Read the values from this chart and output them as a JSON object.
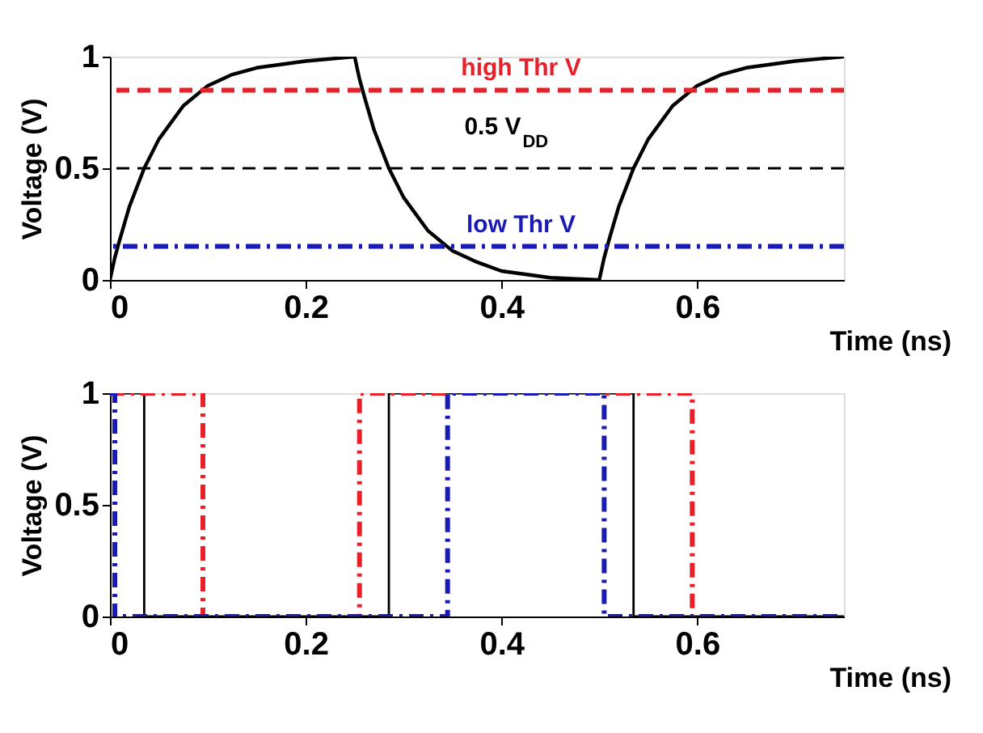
{
  "chart_data": [
    {
      "type": "line",
      "xlabel": "Time (ns)",
      "ylabel": "Voltage (V)",
      "xlim": [
        0,
        0.75
      ],
      "ylim": [
        0,
        1
      ],
      "xticks": [
        0,
        0.2,
        0.4,
        0.6
      ],
      "yticks": [
        0,
        0.5,
        1
      ],
      "grid": false,
      "marker": "none",
      "series": [
        {
          "color": "#000000",
          "line_style": "solid",
          "x": [
            0,
            0.005,
            0.01,
            0.02,
            0.035,
            0.05,
            0.075,
            0.1,
            0.125,
            0.15,
            0.2,
            0.25,
            0.255,
            0.26,
            0.27,
            0.285,
            0.3,
            0.325,
            0.35,
            0.375,
            0.4,
            0.45,
            0.5,
            0.505,
            0.51,
            0.52,
            0.535,
            0.55,
            0.575,
            0.6,
            0.625,
            0.65,
            0.7,
            0.75
          ],
          "values": [
            0,
            0.1,
            0.18,
            0.33,
            0.5,
            0.63,
            0.78,
            0.87,
            0.92,
            0.95,
            0.98,
            1,
            0.9,
            0.82,
            0.67,
            0.5,
            0.37,
            0.22,
            0.13,
            0.08,
            0.04,
            0.01,
            0,
            0.1,
            0.18,
            0.33,
            0.5,
            0.63,
            0.78,
            0.87,
            0.92,
            0.95,
            0.98,
            1
          ]
        }
      ],
      "ref_lines": [
        {
          "axis": "y",
          "value": 0.85,
          "label": "high Thr V",
          "color": "#e8202a",
          "line_style": "dashed"
        },
        {
          "axis": "y",
          "value": 0.5,
          "label": "0.5 V$_{DD}$",
          "color": "#000000",
          "line_style": "dashed"
        },
        {
          "axis": "y",
          "value": 0.15,
          "label": "low Thr V",
          "color": "#1a1ab4",
          "line_style": "dashdot"
        }
      ]
    },
    {
      "type": "step",
      "xlabel": "Time (ns)",
      "ylabel": "Voltage (V)",
      "xlim": [
        0,
        0.75
      ],
      "ylim": [
        0,
        1
      ],
      "xticks": [
        0,
        0.2,
        0.4,
        0.6
      ],
      "yticks": [
        0,
        0.5,
        1
      ],
      "grid": false,
      "marker": "none",
      "series": [
        {
          "color": "#000000",
          "line_style": "solid",
          "x": [
            0,
            0.035,
            0.285,
            0.535,
            0.75
          ],
          "values": [
            1,
            0,
            1,
            0,
            0
          ]
        },
        {
          "color": "#e8202a",
          "line_style": "dashdot",
          "x": [
            0,
            0.095,
            0.255,
            0.595,
            0.75
          ],
          "values": [
            1,
            0,
            1,
            0,
            0
          ]
        },
        {
          "color": "#1a1ab4",
          "line_style": "dashdot",
          "x": [
            0,
            0.005,
            0.345,
            0.505,
            0.75
          ],
          "values": [
            1,
            0,
            1,
            0,
            0
          ]
        }
      ]
    }
  ]
}
